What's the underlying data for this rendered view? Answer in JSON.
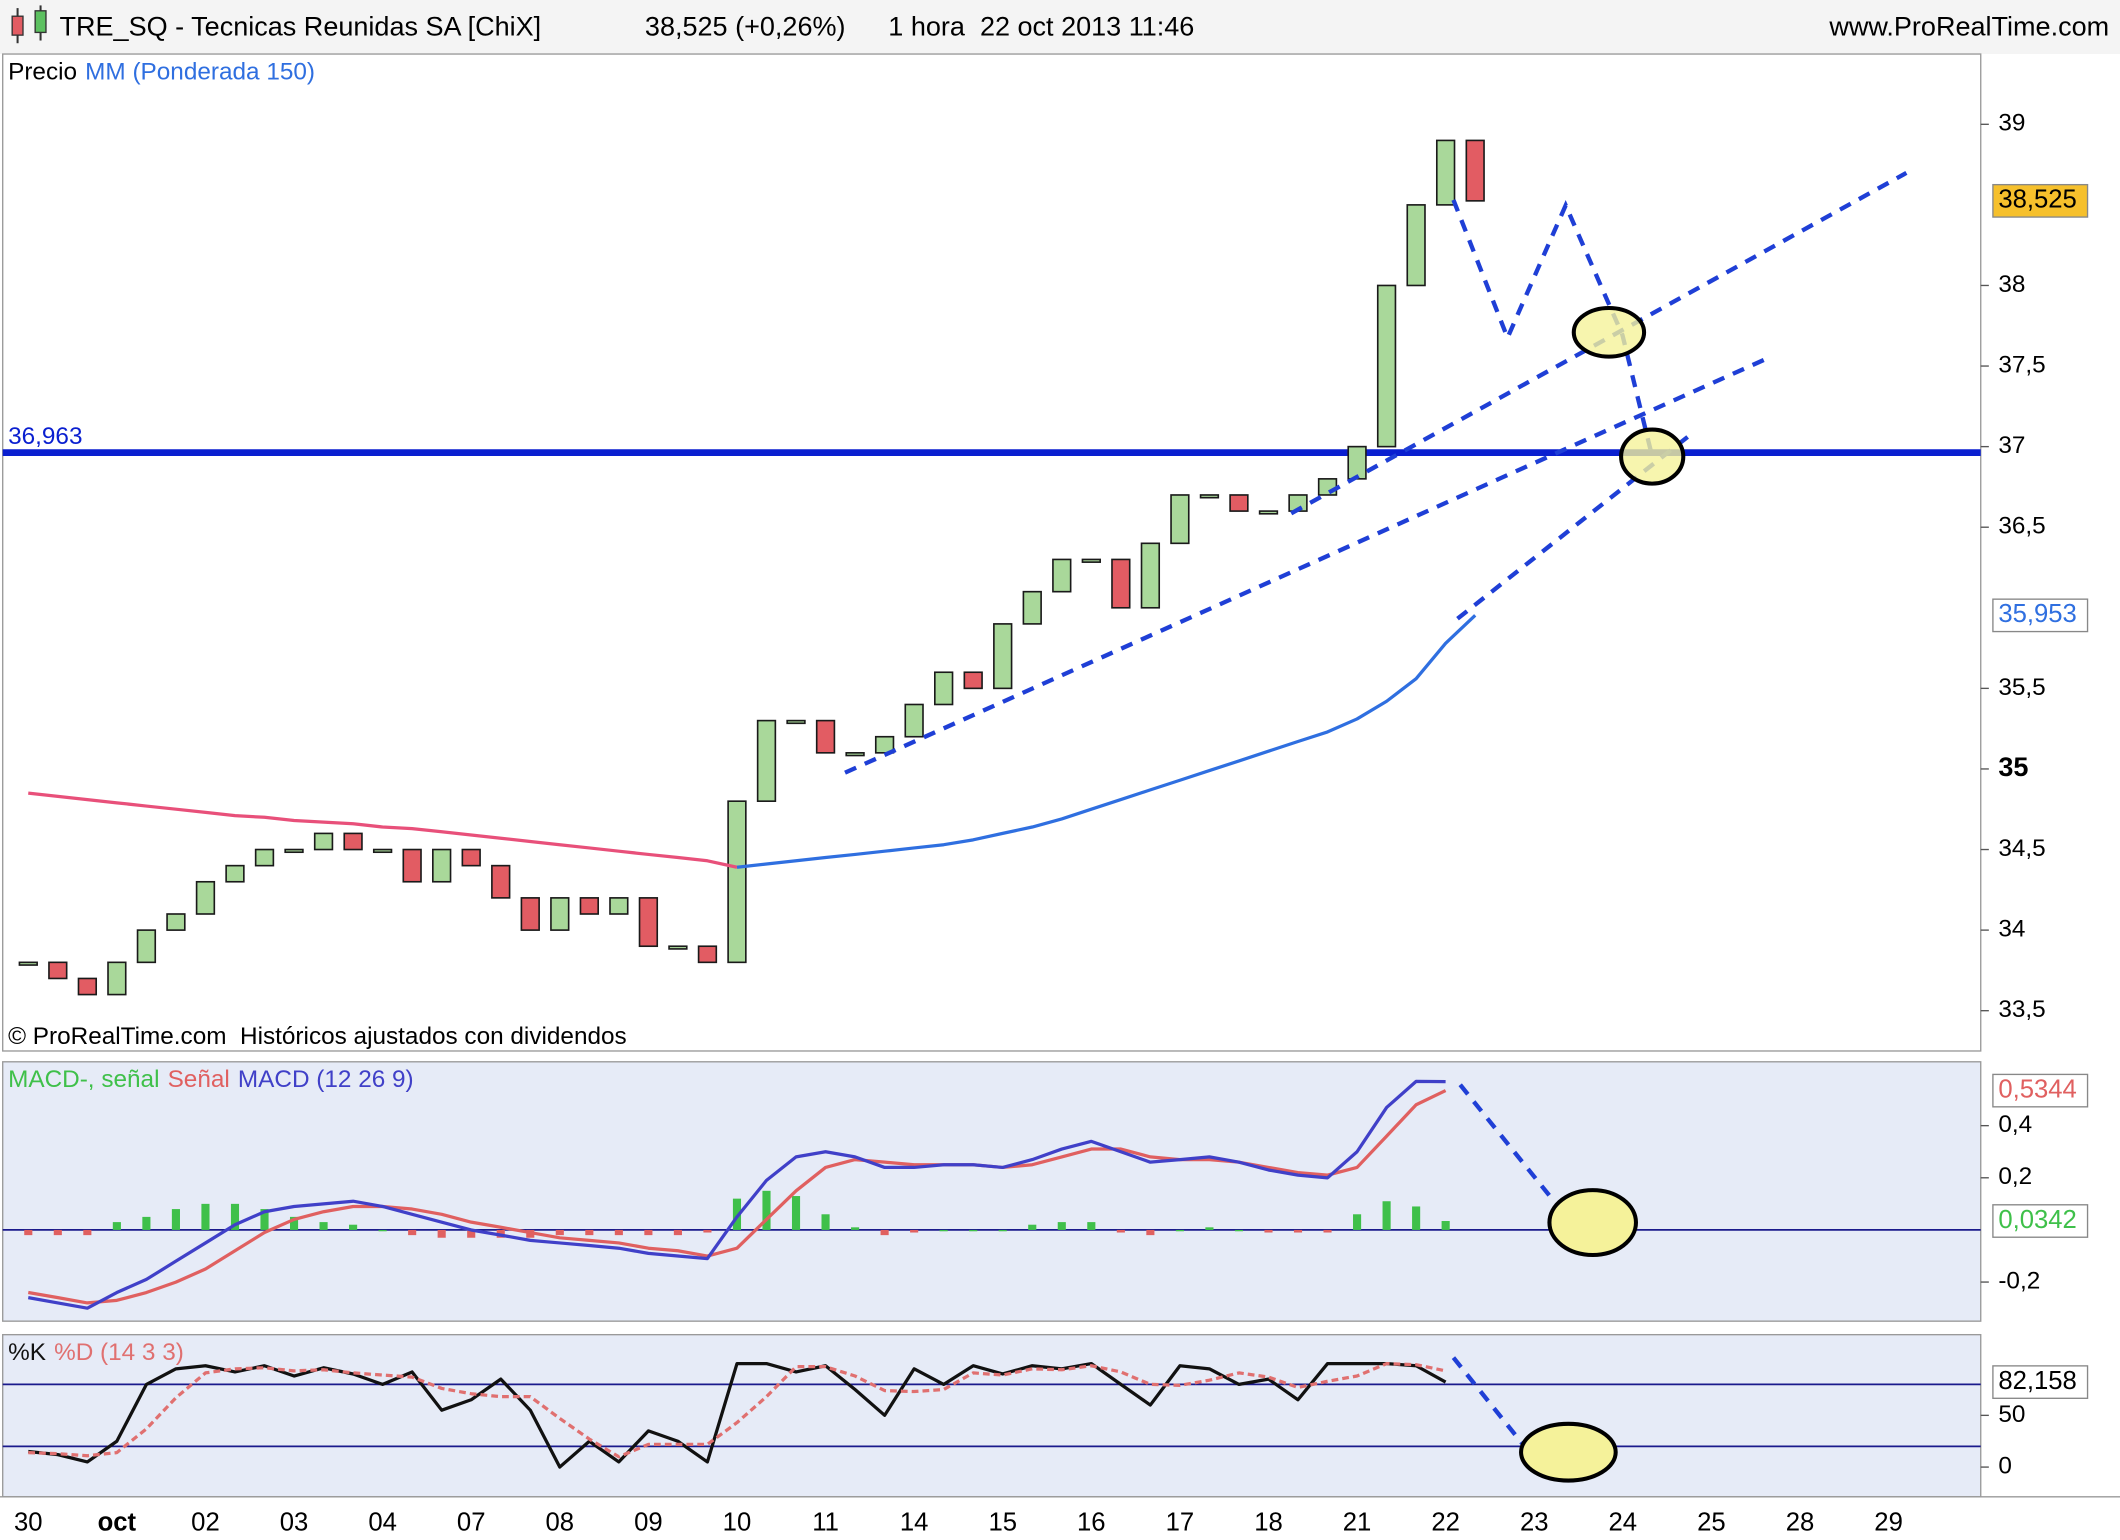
{
  "header": {
    "title": "TRE_SQ - Tecnicas Reunidas SA [ChiX]",
    "quote": "38,525 (+0,26%)",
    "period": "1 hora  22 oct 2013 11:46",
    "site": "www.ProRealTime.com"
  },
  "footer_note": "© ProRealTime.com  Históricos ajustados con dividendos",
  "chart_data": [
    {
      "type": "candlestick",
      "categories": [
        "30",
        null,
        null,
        "oct",
        null,
        null,
        "02",
        null,
        null,
        "03",
        null,
        null,
        "04",
        null,
        null,
        "07",
        null,
        null,
        "08",
        null,
        null,
        "09",
        null,
        null,
        "10",
        null,
        null,
        "11",
        null,
        null,
        "14",
        null,
        null,
        "15",
        null,
        null,
        "16",
        null,
        null,
        "17",
        null,
        null,
        "18",
        null,
        null,
        "21",
        null,
        null,
        "22",
        null,
        null,
        "23",
        null,
        null,
        "24",
        null,
        null,
        "25",
        null,
        null,
        "28",
        null,
        null,
        "29",
        null,
        null
      ],
      "ylim": [
        33.25,
        39.436
      ],
      "yticks": [
        {
          "value": 33.5,
          "label": "33,5"
        },
        34,
        {
          "value": 34.5,
          "label": "34,5"
        },
        35,
        {
          "value": 35.5,
          "label": "35,5"
        },
        {
          "value": 36.5,
          "label": "36,5"
        },
        37,
        {
          "value": 37.5,
          "label": "37,5"
        },
        38,
        39
      ],
      "hlines": [
        {
          "value": 36.963,
          "label": "36,963"
        }
      ],
      "hline_color": "#0a1fd0",
      "series": [
        {
          "name": "Precio",
          "up_color": "#a9d89a",
          "down_color": "#e25c63",
          "values": [
            33.8,
            33.7,
            33.6,
            33.8,
            34.0,
            34.1,
            34.3,
            34.4,
            34.5,
            34.5,
            34.6,
            34.5,
            34.5,
            34.3,
            34.5,
            34.4,
            34.2,
            34.0,
            34.2,
            34.1,
            34.2,
            33.9,
            33.9,
            33.8,
            34.8,
            35.3,
            35.3,
            35.1,
            35.1,
            35.2,
            35.4,
            35.6,
            35.5,
            35.9,
            36.1,
            36.3,
            36.3,
            36.0,
            36.4,
            36.7,
            36.7,
            36.6,
            36.6,
            36.7,
            36.8,
            37.0,
            38.0,
            38.5,
            38.9,
            38.525,
            null,
            null,
            null,
            null,
            null,
            null,
            null,
            null,
            null,
            null,
            null,
            null,
            null,
            null,
            null,
            null
          ]
        },
        {
          "name": "MM (Ponderada 150)",
          "color": "#2f6fe0",
          "prior_color": "#e8507a",
          "color_change_index": 24,
          "values": [
            34.85,
            34.83,
            34.81,
            34.79,
            34.77,
            34.75,
            34.73,
            34.71,
            34.7,
            34.68,
            34.67,
            34.66,
            34.64,
            34.63,
            34.61,
            34.59,
            34.57,
            34.55,
            34.53,
            34.51,
            34.49,
            34.47,
            34.45,
            34.43,
            34.39,
            34.41,
            34.43,
            34.45,
            34.47,
            34.49,
            34.51,
            34.53,
            34.56,
            34.6,
            34.64,
            34.69,
            34.75,
            34.81,
            34.87,
            34.93,
            34.99,
            35.05,
            35.11,
            35.17,
            35.23,
            35.31,
            35.42,
            35.56,
            35.78,
            35.953,
            null,
            null,
            null,
            null,
            null,
            null,
            null,
            null,
            null,
            null,
            null,
            null,
            null,
            null,
            null,
            null
          ]
        }
      ],
      "last_labels": [
        {
          "value": 38.525,
          "label": "38,525",
          "color": "#000",
          "background": "#f6c02c"
        },
        {
          "value": 35.953,
          "label": "35,953",
          "color": "#2f6fe0",
          "background": "#ffffff"
        }
      ]
    },
    {
      "type": "line",
      "ylim": [
        -0.35,
        0.645
      ],
      "yticks": [
        {
          "value": 0.4,
          "label": "0,4"
        },
        {
          "value": 0.2,
          "label": "0,2"
        },
        {
          "value": -0.2,
          "label": "-0,2"
        }
      ],
      "hlines": [
        0
      ],
      "hline_color": "#1a1a8c",
      "series": [
        {
          "name": "MACD-, señal",
          "type": "bar",
          "color": "#3fc04a",
          "negative_color": "#e06060",
          "values": [
            -0.02,
            -0.02,
            -0.02,
            0.03,
            0.05,
            0.08,
            0.1,
            0.1,
            0.08,
            0.05,
            0.03,
            0.02,
            0,
            -0.02,
            -0.03,
            -0.03,
            -0.03,
            -0.03,
            -0.02,
            -0.02,
            -0.02,
            -0.02,
            -0.02,
            -0.01,
            0.12,
            0.15,
            0.13,
            0.06,
            0.01,
            -0.02,
            -0.01,
            0,
            0,
            0,
            0.02,
            0.03,
            0.03,
            -0.01,
            -0.02,
            0,
            0.01,
            0,
            -0.01,
            -0.01,
            -0.01,
            0.06,
            0.11,
            0.09,
            0.0342,
            null,
            null,
            null,
            null,
            null,
            null,
            null,
            null,
            null,
            null,
            null,
            null,
            null,
            null,
            null,
            null,
            null
          ]
        },
        {
          "name": "Señal",
          "color": "#e06060",
          "values": [
            -0.24,
            -0.26,
            -0.28,
            -0.27,
            -0.24,
            -0.2,
            -0.15,
            -0.08,
            -0.01,
            0.04,
            0.07,
            0.09,
            0.09,
            0.08,
            0.06,
            0.03,
            0.01,
            -0.01,
            -0.03,
            -0.04,
            -0.05,
            -0.07,
            -0.08,
            -0.1,
            -0.07,
            0.04,
            0.15,
            0.24,
            0.27,
            0.26,
            0.25,
            0.25,
            0.25,
            0.24,
            0.25,
            0.28,
            0.31,
            0.31,
            0.28,
            0.27,
            0.27,
            0.26,
            0.24,
            0.22,
            0.21,
            0.24,
            0.36,
            0.48,
            0.5344,
            null,
            null,
            null,
            null,
            null,
            null,
            null,
            null,
            null,
            null,
            null,
            null,
            null,
            null,
            null,
            null,
            null
          ]
        },
        {
          "name": "MACD (12 26 9)",
          "color": "#4040c8",
          "values": [
            -0.26,
            -0.28,
            -0.3,
            -0.24,
            -0.19,
            -0.12,
            -0.05,
            0.02,
            0.07,
            0.09,
            0.1,
            0.11,
            0.09,
            0.06,
            0.03,
            0,
            -0.02,
            -0.04,
            -0.05,
            -0.06,
            -0.07,
            -0.09,
            -0.1,
            -0.11,
            0.05,
            0.19,
            0.28,
            0.3,
            0.28,
            0.24,
            0.24,
            0.25,
            0.25,
            0.24,
            0.27,
            0.31,
            0.34,
            0.3,
            0.26,
            0.27,
            0.28,
            0.26,
            0.23,
            0.21,
            0.2,
            0.3,
            0.47,
            0.57,
            0.5686,
            null,
            null,
            null,
            null,
            null,
            null,
            null,
            null,
            null,
            null,
            null,
            null,
            null,
            null,
            null,
            null,
            null
          ]
        }
      ],
      "last_labels": [
        {
          "value": 0.5344,
          "label": "0,5344",
          "color": "#e06060",
          "background": "#ffffff"
        },
        {
          "value": 0.0342,
          "label": "0,0342",
          "color": "#3fc04a",
          "background": "#ffffff"
        }
      ]
    },
    {
      "type": "line",
      "ylim": [
        -28.7,
        128
      ],
      "yticks": [
        50,
        0
      ],
      "hlines": [
        80,
        20
      ],
      "hline_color": "#1a1a8c",
      "series": [
        {
          "name": "%K",
          "color": "#111111",
          "values": [
            15,
            12,
            5,
            25,
            80,
            95,
            98,
            92,
            98,
            88,
            96,
            90,
            80,
            92,
            55,
            65,
            85,
            55,
            0,
            25,
            5,
            35,
            25,
            5,
            100,
            100,
            92,
            98,
            75,
            50,
            95,
            80,
            98,
            90,
            98,
            95,
            100,
            80,
            60,
            98,
            95,
            80,
            85,
            65,
            100,
            100,
            100,
            98,
            82.158,
            null,
            null,
            null,
            null,
            null,
            null,
            null,
            null,
            null,
            null,
            null,
            null,
            null,
            null,
            null,
            null,
            null
          ]
        },
        {
          "name": "%D (14 3 3)",
          "color": "#e07070",
          "dashed": true,
          "values": [
            14,
            13,
            11,
            14,
            37,
            67,
            91,
            95,
            96,
            93,
            94,
            91,
            89,
            87,
            76,
            71,
            68,
            68,
            47,
            27,
            10,
            22,
            22,
            22,
            43,
            68,
            97,
            97,
            88,
            74,
            73,
            75,
            91,
            89,
            95,
            94,
            98,
            92,
            80,
            79,
            84,
            91,
            87,
            77,
            83,
            88,
            100,
            99,
            93,
            null,
            null,
            null,
            null,
            null,
            null,
            null,
            null,
            null,
            null,
            null,
            null,
            null,
            null,
            null,
            null,
            null
          ]
        }
      ],
      "last_labels": [
        {
          "value": 82.158,
          "label": "82,158",
          "color": "#000",
          "background": "#ffffff"
        }
      ]
    }
  ]
}
